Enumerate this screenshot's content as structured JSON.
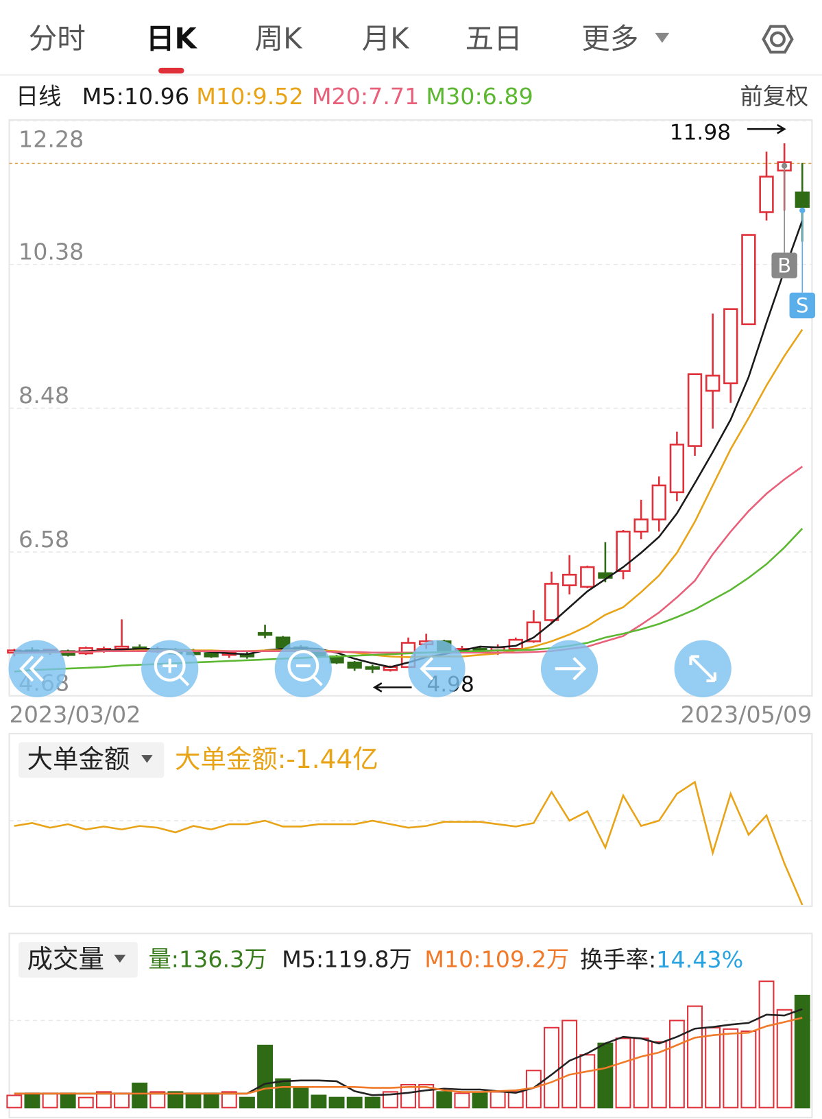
{
  "tabs": [
    "分时",
    "日K",
    "周K",
    "月K",
    "五日",
    "更多"
  ],
  "active_tab": 1,
  "chart_data": [
    {
      "type": "candlestick",
      "period_label": "日线",
      "adjust_label": "前复权",
      "categories": [
        "2023/03/02",
        null,
        null,
        null,
        null,
        null,
        null,
        null,
        null,
        null,
        null,
        null,
        null,
        null,
        null,
        null,
        null,
        null,
        null,
        null,
        null,
        null,
        null,
        null,
        null,
        null,
        null,
        null,
        null,
        null,
        null,
        null,
        null,
        null,
        null,
        null,
        null,
        null,
        null,
        null,
        null,
        null,
        null,
        null,
        "2023/05/09"
      ],
      "open": [
        5.25,
        5.28,
        5.26,
        5.27,
        5.24,
        5.28,
        5.3,
        5.32,
        5.28,
        5.28,
        5.26,
        5.24,
        5.22,
        5.23,
        5.51,
        5.45,
        5.32,
        5.28,
        5.2,
        5.12,
        5.06,
        5.02,
        5.06,
        5.36,
        5.4,
        5.28,
        5.3,
        5.28,
        5.3,
        5.4,
        5.68,
        6.14,
        6.12,
        6.3,
        6.33,
        6.85,
        7.01,
        7.37,
        7.98,
        8.71,
        8.81,
        9.59,
        11.07,
        11.62,
        11.33
      ],
      "high": [
        5.3,
        5.32,
        5.3,
        5.29,
        5.33,
        5.33,
        5.69,
        5.36,
        5.33,
        5.31,
        5.3,
        5.28,
        5.27,
        5.26,
        5.62,
        5.47,
        5.35,
        5.3,
        5.22,
        5.14,
        5.09,
        5.08,
        5.45,
        5.5,
        5.42,
        5.34,
        5.34,
        5.36,
        5.45,
        5.81,
        6.32,
        6.54,
        6.4,
        6.71,
        6.87,
        7.27,
        7.58,
        8.17,
        8.93,
        9.73,
        9.8,
        10.77,
        11.87,
        11.98,
        11.72
      ],
      "low": [
        5.2,
        5.24,
        5.22,
        5.2,
        5.22,
        5.25,
        5.26,
        5.26,
        5.25,
        5.22,
        5.2,
        5.18,
        5.18,
        5.17,
        5.44,
        5.26,
        5.25,
        5.18,
        5.1,
        5.01,
        4.98,
        5.0,
        5.05,
        5.3,
        5.24,
        5.24,
        5.26,
        5.22,
        5.28,
        5.38,
        5.65,
        6.02,
        6.1,
        6.18,
        6.22,
        6.75,
        6.85,
        7.25,
        7.85,
        8.21,
        8.55,
        9.59,
        10.96,
        11.09,
        10.68
      ],
      "close": [
        5.28,
        5.27,
        5.29,
        5.22,
        5.31,
        5.3,
        5.33,
        5.28,
        5.29,
        5.24,
        5.23,
        5.2,
        5.25,
        5.2,
        5.5,
        5.32,
        5.28,
        5.2,
        5.12,
        5.05,
        5.04,
        5.06,
        5.38,
        5.4,
        5.28,
        5.3,
        5.28,
        5.32,
        5.42,
        5.65,
        6.16,
        6.28,
        6.38,
        6.24,
        6.85,
        7.01,
        7.46,
        8.0,
        8.93,
        8.91,
        9.79,
        10.77,
        11.54,
        11.73,
        11.14
      ],
      "up_color": "#e0313a",
      "down_color": "#2e6b14",
      "series": [
        {
          "name": "M5:10.96",
          "color": "#1a1a1a",
          "values": [
            5.27,
            5.27,
            5.27,
            5.26,
            5.27,
            5.28,
            5.29,
            5.3,
            5.3,
            5.29,
            5.28,
            5.26,
            5.24,
            5.23,
            5.28,
            5.3,
            5.31,
            5.3,
            5.25,
            5.17,
            5.11,
            5.06,
            5.12,
            5.19,
            5.23,
            5.28,
            5.33,
            5.32,
            5.34,
            5.45,
            5.64,
            5.85,
            6.06,
            6.22,
            6.38,
            6.57,
            6.78,
            7.09,
            7.49,
            7.9,
            8.33,
            8.89,
            9.61,
            10.3,
            10.96
          ]
        },
        {
          "name": "M10:9.52",
          "color": "#e8a317",
          "values": [
            5.24,
            5.25,
            5.25,
            5.26,
            5.26,
            5.27,
            5.27,
            5.28,
            5.28,
            5.28,
            5.28,
            5.28,
            5.27,
            5.27,
            5.28,
            5.28,
            5.28,
            5.28,
            5.27,
            5.25,
            5.22,
            5.2,
            5.19,
            5.2,
            5.2,
            5.2,
            5.22,
            5.24,
            5.28,
            5.33,
            5.4,
            5.49,
            5.6,
            5.75,
            5.85,
            6.05,
            6.27,
            6.57,
            6.98,
            7.46,
            7.94,
            8.35,
            8.78,
            9.17,
            9.52
          ]
        },
        {
          "name": "M20:7.71",
          "color": "#e8607a",
          "values": [
            5.25,
            5.25,
            5.26,
            5.26,
            5.26,
            5.27,
            5.27,
            5.27,
            5.27,
            5.27,
            5.27,
            5.27,
            5.27,
            5.27,
            5.27,
            5.27,
            5.27,
            5.27,
            5.26,
            5.26,
            5.25,
            5.25,
            5.25,
            5.25,
            5.25,
            5.25,
            5.25,
            5.25,
            5.25,
            5.26,
            5.27,
            5.3,
            5.33,
            5.4,
            5.47,
            5.62,
            5.78,
            5.98,
            6.2,
            6.55,
            6.85,
            7.12,
            7.35,
            7.54,
            7.71
          ]
        },
        {
          "name": "M30:6.89",
          "color": "#5cb832",
          "values": [
            5.0,
            5.02,
            5.03,
            5.04,
            5.05,
            5.06,
            5.08,
            5.09,
            5.1,
            5.11,
            5.12,
            5.13,
            5.14,
            5.15,
            5.16,
            5.17,
            5.18,
            5.19,
            5.2,
            5.21,
            5.22,
            5.23,
            5.24,
            5.25,
            5.26,
            5.27,
            5.27,
            5.28,
            5.28,
            5.29,
            5.31,
            5.34,
            5.38,
            5.45,
            5.5,
            5.56,
            5.63,
            5.72,
            5.82,
            5.95,
            6.08,
            6.24,
            6.42,
            6.64,
            6.89
          ]
        }
      ],
      "ylim": [
        4.68,
        12.28
      ],
      "yticks": [
        4.68,
        6.58,
        8.48,
        10.38,
        12.28
      ],
      "grid": true,
      "high_label": 11.98,
      "low_label": 4.98,
      "trade_marks": [
        "B",
        "S"
      ]
    },
    {
      "type": "line",
      "selector": "大单金额",
      "title": "大单金额:-1.44亿",
      "color": "#e8a317",
      "values": [
        -0.09,
        -0.04,
        -0.12,
        -0.06,
        -0.15,
        -0.1,
        -0.15,
        -0.09,
        -0.12,
        -0.2,
        -0.09,
        -0.15,
        -0.06,
        -0.06,
        0,
        -0.1,
        -0.1,
        -0.06,
        -0.06,
        -0.06,
        0,
        -0.06,
        -0.12,
        -0.09,
        -0.02,
        -0.02,
        -0.02,
        -0.06,
        -0.1,
        -0.04,
        0.49,
        0,
        0.16,
        -0.46,
        0.43,
        -0.09,
        0,
        0.46,
        0.66,
        -0.55,
        0.46,
        -0.24,
        0.09,
        -0.73,
        -1.44
      ],
      "ylim": [
        -1.5,
        1.5
      ]
    },
    {
      "type": "bar",
      "selector": "成交量",
      "name": "量:136.3万",
      "name_color": "#3a7d1f",
      "values": [
        14.8,
        17.4,
        17.4,
        17.4,
        12.2,
        19.1,
        17.4,
        29.5,
        19.1,
        19.1,
        17.4,
        17.4,
        19.1,
        12.2,
        75.5,
        34.7,
        23.4,
        14.8,
        12.2,
        12.2,
        12.2,
        19.1,
        27.8,
        27.8,
        19.1,
        17.4,
        17.4,
        19.1,
        19.1,
        45.1,
        97.2,
        105.9,
        64.2,
        78.1,
        84.2,
        84.2,
        79.9,
        105.9,
        123.3,
        97.2,
        95.5,
        92.9,
        153.6,
        118.9,
        136.3
      ],
      "series": [
        {
          "name": "M5:119.8万",
          "color": "#222222",
          "values": [
            17,
            17,
            17,
            17,
            17,
            17,
            17,
            17,
            17,
            17,
            17,
            17,
            17,
            17,
            29,
            32,
            33,
            33,
            32,
            20,
            15,
            16,
            18,
            21,
            23,
            22,
            22,
            20,
            18,
            24,
            40,
            57,
            66,
            78,
            86,
            84,
            78,
            86,
            96,
            98,
            101,
            103,
            113,
            112,
            119.8
          ]
        },
        {
          "name": "M10:109.2万",
          "color": "#f07a2a",
          "values": [
            17,
            17,
            17,
            17,
            17,
            17,
            17,
            17,
            17,
            17,
            17,
            17,
            17,
            17,
            23,
            25,
            25,
            25,
            25,
            25,
            24,
            24,
            25,
            25,
            21,
            19,
            19,
            20,
            21,
            24,
            31,
            40,
            44,
            48,
            55,
            62,
            67,
            76,
            85,
            88,
            90,
            91,
            99,
            104,
            109.2
          ]
        }
      ],
      "turnover_label": "换手率:",
      "turnover_value": "14.43%",
      "turnover_color": "#2aa4e0",
      "ylim": [
        0,
        158
      ]
    }
  ]
}
